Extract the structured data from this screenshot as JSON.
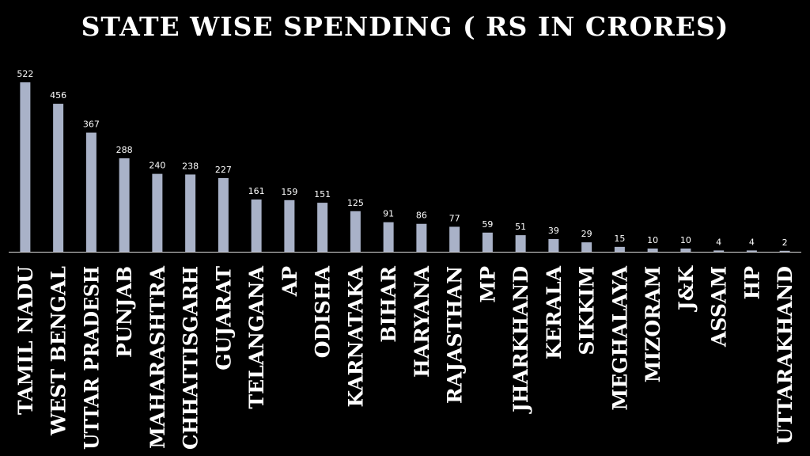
{
  "chart_data": {
    "type": "bar",
    "title": "STATE WISE SPENDING ( RS IN CRORES)",
    "categories": [
      "TAMIL NADU",
      "WEST BENGAL",
      "UTTAR PRADESH",
      "PUNJAB",
      "MAHARASHTRA",
      "CHHATTISGARH",
      "GUJARAT",
      "TELANGANA",
      "AP",
      "ODISHA",
      "KARNATAKA",
      "BIHAR",
      "HARYANA",
      "RAJASTHAN",
      "MP",
      "JHARKHAND",
      "KERALA",
      "SIKKIM",
      "MEGHALAYA",
      "MIZORAM",
      "J&K",
      "ASSAM",
      "HP",
      "UTTARAKHAND"
    ],
    "values": [
      522,
      456,
      367,
      288,
      240,
      238,
      227,
      161,
      159,
      151,
      125,
      91,
      86,
      77,
      59,
      51,
      39,
      29,
      15,
      10,
      10,
      4,
      4,
      2
    ],
    "data_labels": [
      "522",
      "456",
      "367",
      "288",
      "240",
      "238",
      "227",
      "161",
      "159",
      "151",
      "125",
      "91",
      "86",
      "77",
      "59",
      "51",
      "39",
      "29",
      "15",
      "10",
      "10",
      "4",
      "4",
      "2"
    ],
    "xlabel": "",
    "ylabel": "",
    "ylim": [
      0,
      522
    ],
    "grid": false,
    "legend": "none",
    "colors": {
      "background": "#000000",
      "bar": "#a9b2c8",
      "text": "#ffffff",
      "axis": "#d9d9d9"
    }
  }
}
